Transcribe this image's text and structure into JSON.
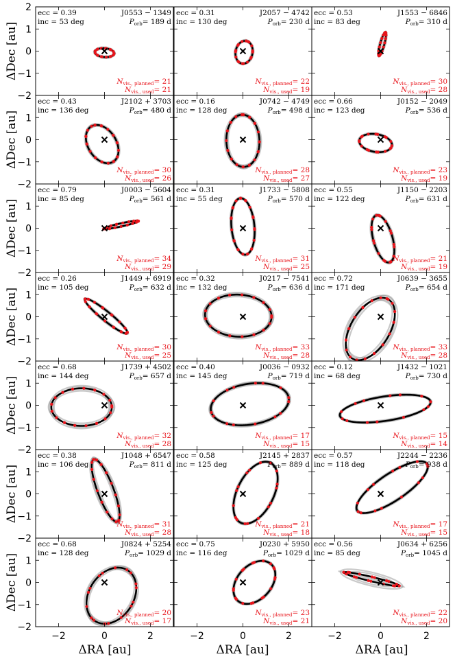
{
  "chart_data": {
    "type": "scatter",
    "layout": {
      "rows": 7,
      "cols": 3
    },
    "xlabel": "ΔRA [au]",
    "ylabel": "ΔDec [au]",
    "xlim": [
      -3,
      3
    ],
    "ylim": [
      -2,
      2
    ],
    "xticks": [
      -2,
      0,
      2
    ],
    "yticks": [
      -2,
      -1,
      0,
      1,
      2
    ],
    "colors": {
      "orbit": "#000000",
      "orbit_samples": "#888888",
      "points": "#e8141b",
      "annotation_red": "#e8141b",
      "star_marker": "#000000"
    },
    "grid": false,
    "panels": [
      {
        "name": "J0553 − 1349",
        "ecc_text": "ecc = 0.39",
        "inc_text": "inc = 53 deg",
        "porb_text": "P",
        "porb_val": "= 189 d",
        "planned": "= 21",
        "used": "= 21",
        "ellipse": {
          "cx": 0.0,
          "cy": -0.07,
          "a": 0.42,
          "b": 0.2,
          "rot": -5
        },
        "spread": 0.05
      },
      {
        "name": "J2057 − 4742",
        "ecc_text": "ecc = 0.31",
        "inc_text": "inc = 130 deg",
        "porb_text": "P",
        "porb_val": "= 230 d",
        "planned": "= 22",
        "used": "= 19",
        "ellipse": {
          "cx": 0.05,
          "cy": -0.05,
          "a": 0.52,
          "b": 0.37,
          "rot": 80
        },
        "spread": 0.05
      },
      {
        "name": "J1553 − 6846",
        "ecc_text": "ecc = 0.53",
        "inc_text": "inc = 83 deg",
        "porb_text": "P",
        "porb_val": "= 310 d",
        "planned": "= 30",
        "used": "= 28",
        "ellipse": {
          "cx": 0.07,
          "cy": 0.32,
          "a": 0.55,
          "b": 0.09,
          "rot": 75
        },
        "spread": 0.05
      },
      {
        "name": "J2102 + 3703",
        "ecc_text": "ecc = 0.43",
        "inc_text": "inc = 136 deg",
        "porb_text": "P",
        "porb_val": "= 480 d",
        "planned": "= 30",
        "used": "= 26",
        "ellipse": {
          "cx": -0.1,
          "cy": -0.2,
          "a": 0.93,
          "b": 0.62,
          "rot": 120
        },
        "spread": 0.06
      },
      {
        "name": "J0742 − 4749",
        "ecc_text": "ecc = 0.16",
        "inc_text": "inc = 128 deg",
        "porb_text": "P",
        "porb_val": "= 498 d",
        "planned": "= 28",
        "used": "= 27",
        "ellipse": {
          "cx": 0.0,
          "cy": -0.05,
          "a": 1.18,
          "b": 0.72,
          "rot": 92
        },
        "spread": 0.08
      },
      {
        "name": "J0152 − 2049",
        "ecc_text": "ecc = 0.66",
        "inc_text": "inc = 123 deg",
        "porb_text": "P",
        "porb_val": "= 536 d",
        "planned": "= 23",
        "used": "= 19",
        "ellipse": {
          "cx": -0.22,
          "cy": -0.15,
          "a": 0.72,
          "b": 0.4,
          "rot": -10
        },
        "spread": 0.05
      },
      {
        "name": "J0003 − 5604",
        "ecc_text": "ecc = 0.79",
        "inc_text": "inc = 85 deg",
        "porb_text": "P",
        "porb_val": "= 561 d",
        "planned": "= 34",
        "used": "= 29",
        "ellipse": {
          "cx": 0.72,
          "cy": 0.15,
          "a": 0.78,
          "b": 0.07,
          "rot": 13
        },
        "spread": 0.03
      },
      {
        "name": "J1733 − 5808",
        "ecc_text": "ecc = 0.31",
        "inc_text": "inc = 55 deg",
        "porb_text": "P",
        "porb_val": "= 570 d",
        "planned": "= 31",
        "used": "= 25",
        "ellipse": {
          "cx": 0.0,
          "cy": 0.08,
          "a": 1.28,
          "b": 0.5,
          "rot": 95
        },
        "spread": 0.05
      },
      {
        "name": "J1150 − 2203",
        "ecc_text": "ecc = 0.55",
        "inc_text": "inc = 122 deg",
        "porb_text": "P",
        "porb_val": "= 631 d",
        "planned": "= 21",
        "used": "= 19",
        "ellipse": {
          "cx": 0.1,
          "cy": -0.48,
          "a": 1.1,
          "b": 0.42,
          "rot": 105
        },
        "spread": 0.06
      },
      {
        "name": "J1449 + 6919",
        "ecc_text": "ecc = 0.26",
        "inc_text": "inc = 105 deg",
        "porb_text": "P",
        "porb_val": "= 632 d",
        "planned": "= 30",
        "used": "= 25",
        "ellipse": {
          "cx": 0.07,
          "cy": 0.03,
          "a": 1.2,
          "b": 0.2,
          "rot": 140
        },
        "spread": 0.05
      },
      {
        "name": "J0217 − 7541",
        "ecc_text": "ecc = 0.32",
        "inc_text": "inc = 132 deg",
        "porb_text": "P",
        "porb_val": "= 636 d",
        "planned": "= 33",
        "used": "= 28",
        "ellipse": {
          "cx": -0.2,
          "cy": 0.05,
          "a": 1.45,
          "b": 0.95,
          "rot": -3
        },
        "spread": 0.09
      },
      {
        "name": "J0639 − 3655",
        "ecc_text": "ecc = 0.72",
        "inc_text": "inc = 171 deg",
        "porb_text": "P",
        "porb_val": "= 654 d",
        "planned": "= 33",
        "used": "= 28",
        "ellipse": {
          "cx": -0.45,
          "cy": -0.55,
          "a": 1.55,
          "b": 0.85,
          "rot": 60
        },
        "spread": 0.14
      },
      {
        "name": "J1739 + 4502",
        "ecc_text": "ecc = 0.68",
        "inc_text": "inc = 144 deg",
        "porb_text": "P",
        "porb_val": "= 657 d",
        "planned": "= 32",
        "used": "= 28",
        "ellipse": {
          "cx": -1.0,
          "cy": -0.08,
          "a": 1.32,
          "b": 0.85,
          "rot": 0
        },
        "spread": 0.12
      },
      {
        "name": "J0036 − 0932",
        "ecc_text": "ecc = 0.40",
        "inc_text": "inc = 145 deg",
        "porb_text": "P",
        "porb_val": "= 719 d",
        "planned": "= 17",
        "used": "= 15",
        "ellipse": {
          "cx": 0.3,
          "cy": 0.05,
          "a": 1.72,
          "b": 0.92,
          "rot": 10
        },
        "spread": 0.07
      },
      {
        "name": "J1432 − 1021",
        "ecc_text": "ecc = 0.12",
        "inc_text": "inc = 68 deg",
        "porb_text": "P",
        "porb_val": "= 730 d",
        "planned": "= 15",
        "used": "= 14",
        "ellipse": {
          "cx": 0.2,
          "cy": -0.15,
          "a": 2.0,
          "b": 0.55,
          "rot": 9
        },
        "spread": 0.05
      },
      {
        "name": "J1048 + 6547",
        "ecc_text": "ecc = 0.38",
        "inc_text": "inc = 106 deg",
        "porb_text": "P",
        "porb_val": "= 811 d",
        "planned": "= 31",
        "used": "= 28",
        "ellipse": {
          "cx": 0.05,
          "cy": 0.15,
          "a": 1.5,
          "b": 0.35,
          "rot": 110
        },
        "spread": 0.1
      },
      {
        "name": "J2145 + 2837",
        "ecc_text": "ecc = 0.58",
        "inc_text": "inc = 125 deg",
        "porb_text": "P",
        "porb_val": "= 889 d",
        "planned": "= 21",
        "used": "= 18",
        "ellipse": {
          "cx": 0.55,
          "cy": 0.05,
          "a": 1.5,
          "b": 0.8,
          "rot": 65
        },
        "spread": 0.05
      },
      {
        "name": "J2244 − 2236",
        "ecc_text": "ecc = 0.57",
        "inc_text": "inc = 118 deg",
        "porb_text": "P",
        "porb_val": "= 938 d",
        "planned": "= 17",
        "used": "= 15",
        "ellipse": {
          "cx": 0.5,
          "cy": 0.3,
          "a": 1.85,
          "b": 0.6,
          "rot": 35
        },
        "spread": 0.05
      },
      {
        "name": "J0824 + 5254",
        "ecc_text": "ecc = 0.68",
        "inc_text": "inc = 128 deg",
        "porb_text": "P",
        "porb_val": "= 1029 d",
        "planned": "= 20",
        "used": "= 17",
        "ellipse": {
          "cx": 0.3,
          "cy": -0.6,
          "a": 1.35,
          "b": 0.98,
          "rot": 60
        },
        "spread": 0.1
      },
      {
        "name": "J0230 + 5950",
        "ecc_text": "ecc = 0.75",
        "inc_text": "inc = 116 deg",
        "porb_text": "P",
        "porb_val": "= 1029 d",
        "planned": "= 23",
        "used": "= 21",
        "ellipse": {
          "cx": 0.5,
          "cy": 0.0,
          "a": 1.1,
          "b": 0.75,
          "rot": 50
        },
        "spread": 0.05
      },
      {
        "name": "J0634 + 6256",
        "ecc_text": "ecc = 0.56",
        "inc_text": "inc = 85 deg",
        "porb_text": "P",
        "porb_val": "= 1045 d",
        "planned": "= 22",
        "used": "= 20",
        "ellipse": {
          "cx": -0.4,
          "cy": 0.15,
          "a": 1.25,
          "b": 0.1,
          "rot": -14
        },
        "spread": 0.2
      }
    ]
  }
}
